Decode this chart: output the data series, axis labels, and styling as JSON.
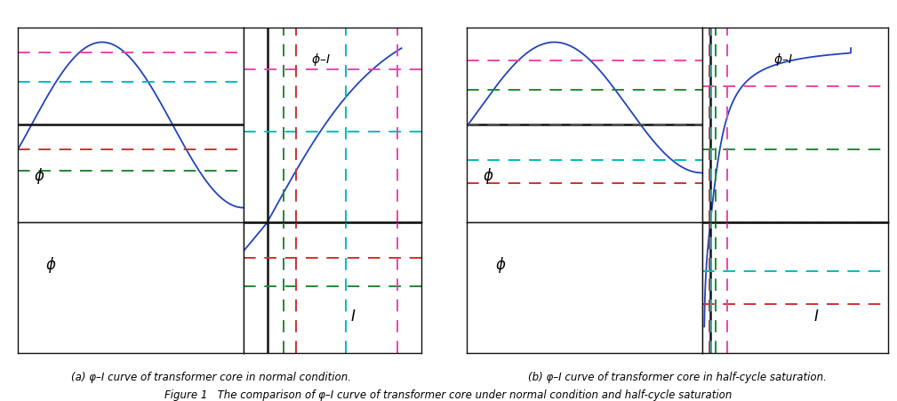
{
  "fig_width": 10.09,
  "fig_height": 4.52,
  "bg_color": "#ffffff",
  "line_color": "#2244bb",
  "axis_color": "#222222",
  "axis_lw": 1.8,
  "curve_lw": 1.3,
  "spine_lw": 1.0,
  "panel_a_caption": "(a) φ–I curve of transformer core in normal condition.",
  "panel_b_caption": "(b) φ–I curve of transformer core in half-cycle saturation.",
  "figure_caption": "Figure 1   The comparison of φ–I curve of transformer core under normal condition and half-cycle saturation",
  "colors": {
    "magenta": "#ee44aa",
    "cyan": "#00bbbb",
    "red": "#cc3333",
    "green": "#228833",
    "gray": "#555555"
  },
  "panel_a_dashes_phi": {
    "levels": [
      0.88,
      0.52,
      -0.3,
      -0.55
    ],
    "colors": [
      "magenta",
      "cyan",
      "red",
      "green"
    ]
  },
  "panel_a_dashes_I": {
    "xvals": [
      0.48,
      0.85,
      2.3,
      3.8
    ],
    "colors": [
      "green",
      "red",
      "cyan",
      "magenta"
    ]
  },
  "panel_b_dashes_phi": {
    "levels": [
      0.78,
      0.42,
      -0.42,
      -0.7
    ],
    "colors": [
      "magenta",
      "green",
      "cyan",
      "red"
    ]
  },
  "panel_b_gray_dash_phi": 0.0,
  "panel_b_dashes_I": {
    "xvals": [
      -0.08,
      0.04,
      0.45,
      1.3
    ],
    "colors": [
      "red",
      "cyan",
      "green",
      "magenta"
    ]
  }
}
